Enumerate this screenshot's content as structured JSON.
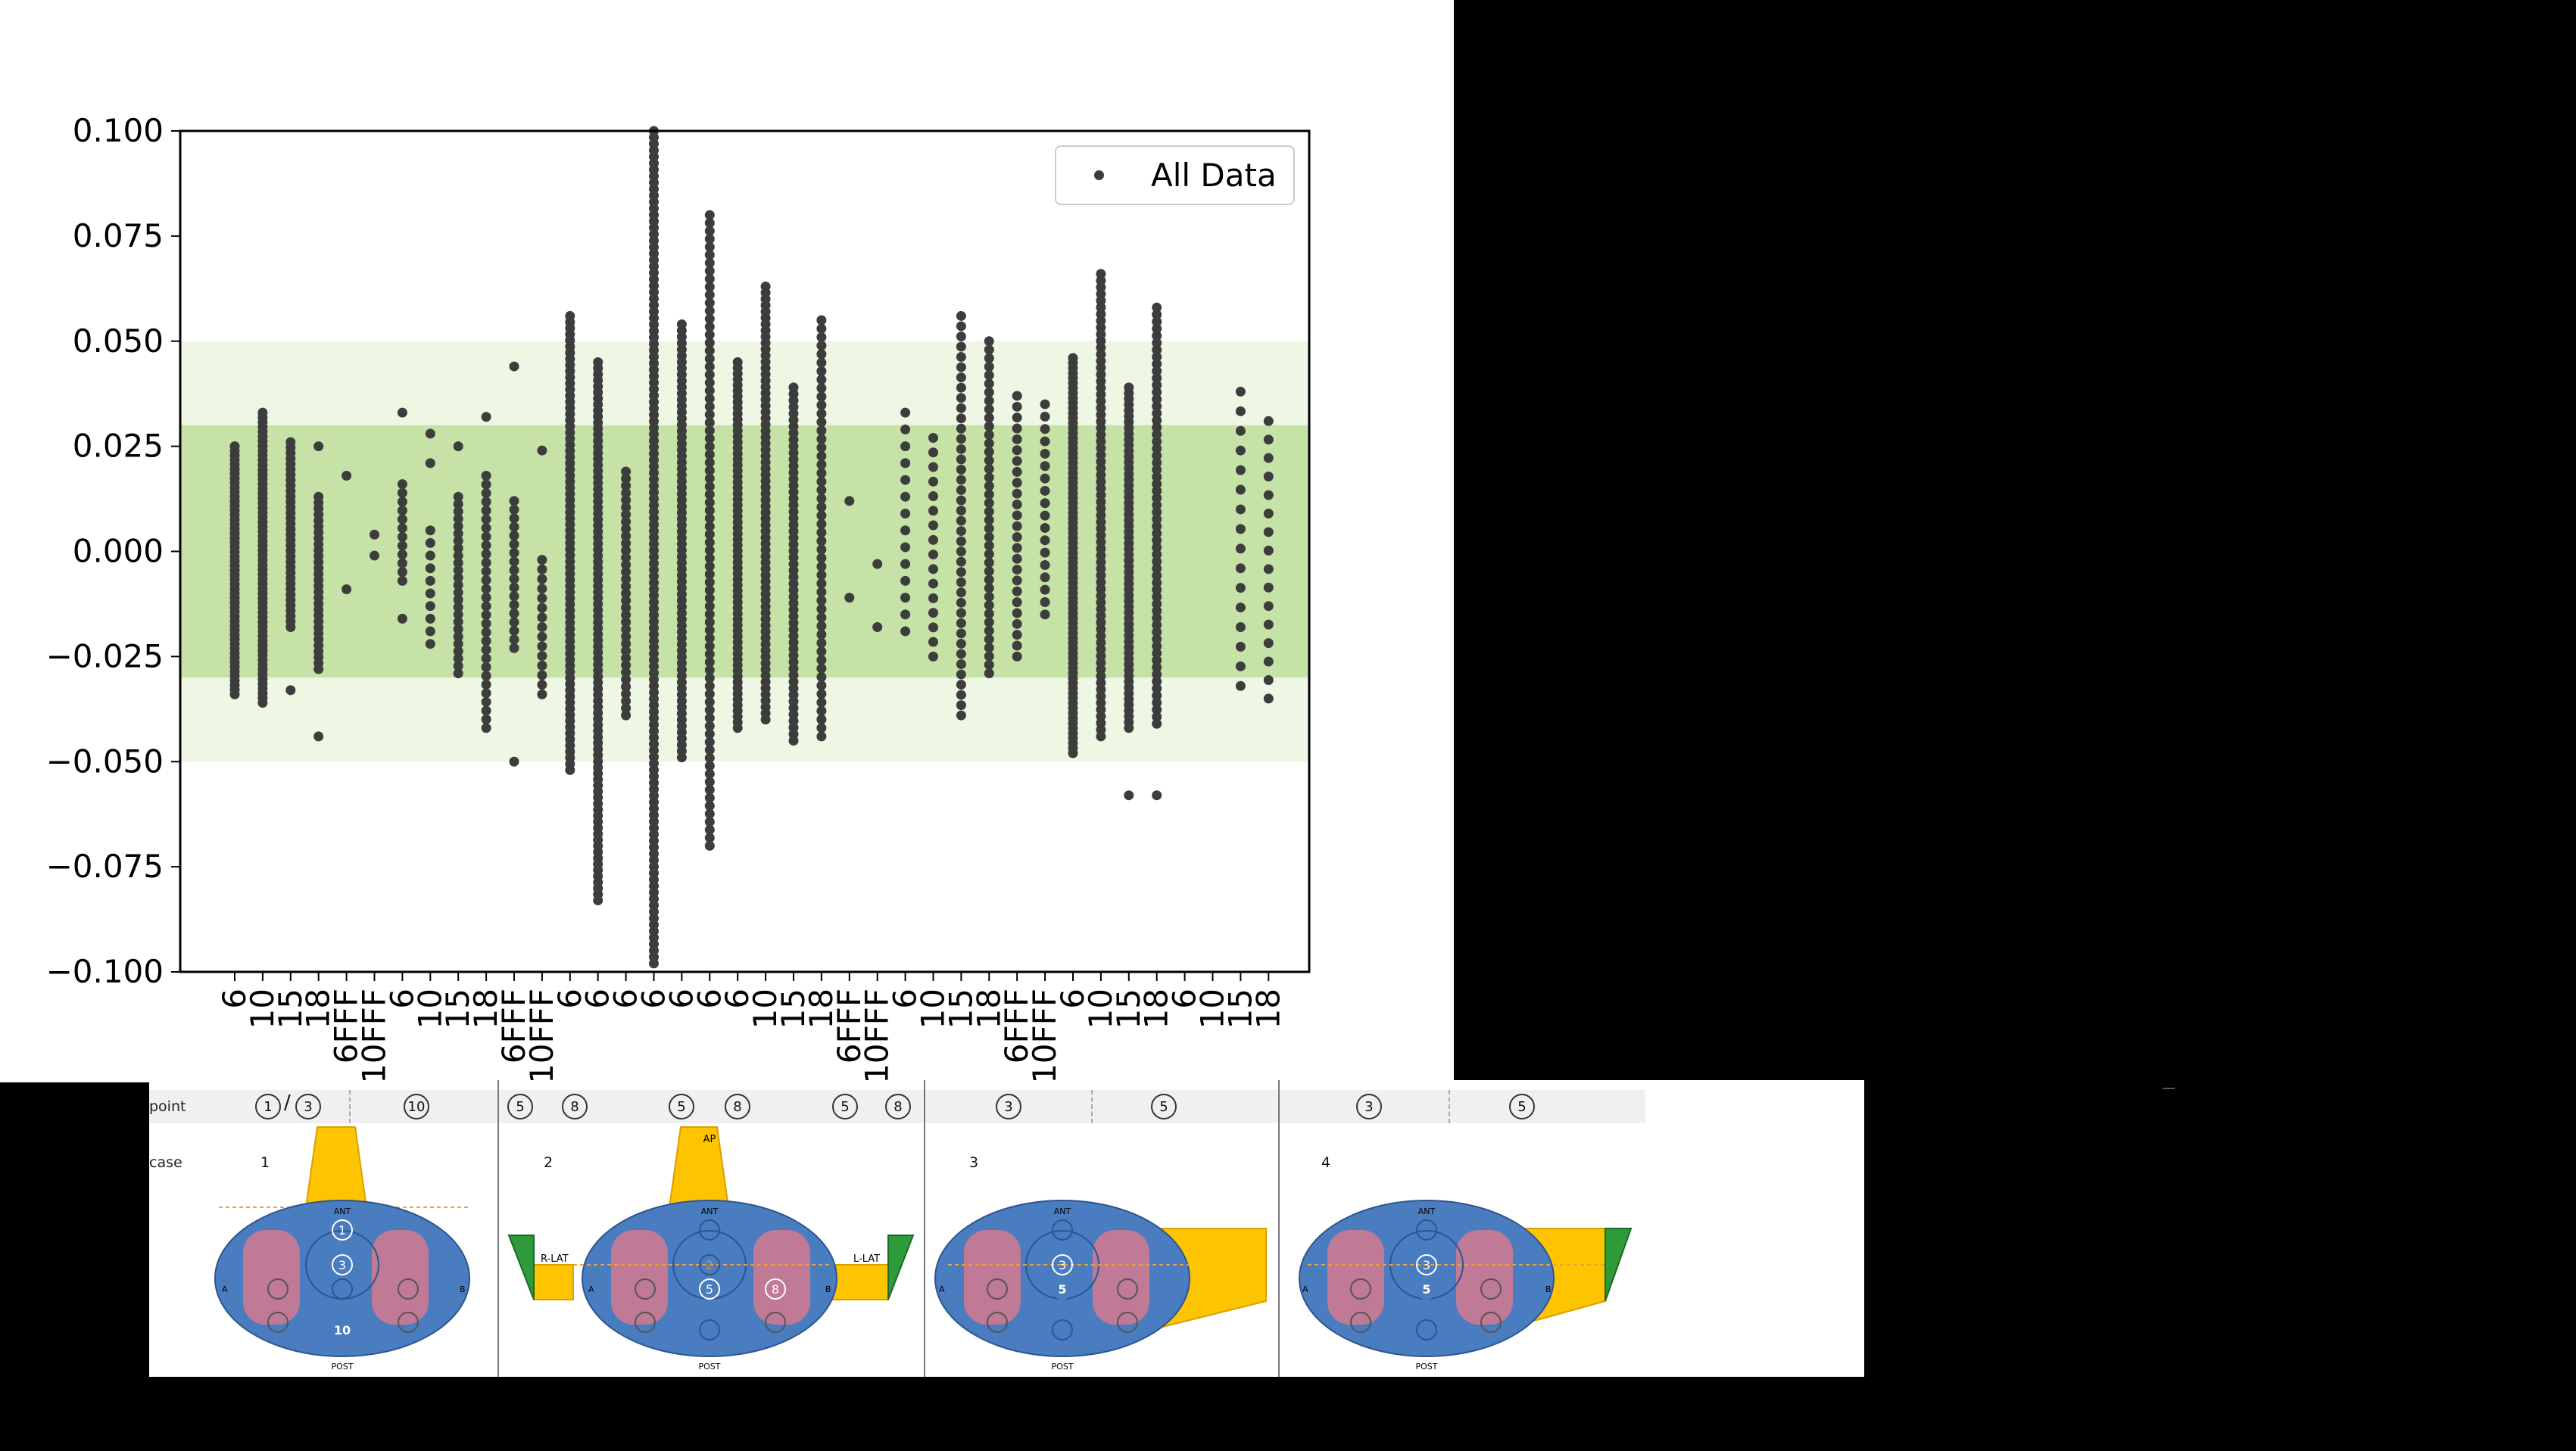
{
  "chart_data": {
    "type": "scatter",
    "title": "",
    "xlabel": "",
    "ylabel": "",
    "ylim": [
      -0.1,
      0.1
    ],
    "yticks": [
      "0.100",
      "0.075",
      "0.050",
      "0.025",
      "0.000",
      "−0.025",
      "−0.050",
      "−0.075",
      "−0.100"
    ],
    "yticks_values": [
      0.1,
      0.075,
      0.05,
      0.025,
      0.0,
      -0.025,
      -0.05,
      -0.075,
      -0.1
    ],
    "bands": [
      {
        "from": -0.05,
        "to": 0.05,
        "color": "#eef6e4"
      },
      {
        "from": -0.03,
        "to": 0.03,
        "color": "#c6e2a6"
      }
    ],
    "xticks": [
      "6",
      "10",
      "15",
      "18",
      "6FFF",
      "10FFF",
      "6",
      "10",
      "15",
      "18",
      "6FFF",
      "10FFF",
      "6",
      "6",
      "6",
      "6",
      "6",
      "6",
      "6",
      "10",
      "15",
      "18",
      "6FFF",
      "10FFF",
      "6",
      "10",
      "15",
      "18",
      "6FFF",
      "10FFF",
      "6",
      "10",
      "15",
      "18",
      "6",
      "10",
      "15",
      "18"
    ],
    "legend": {
      "label": "All Data",
      "position": "upper right"
    },
    "marker_color": "#3d3d3d",
    "series": [
      {
        "name": "All Data",
        "columns": [
          {
            "x": 1,
            "min": -0.034,
            "max": 0.025,
            "count": 55,
            "outliers": []
          },
          {
            "x": 2,
            "min": -0.036,
            "max": 0.033,
            "count": 62,
            "outliers": []
          },
          {
            "x": 3,
            "min": -0.018,
            "max": 0.026,
            "count": 35,
            "outliers": [
              -0.033
            ]
          },
          {
            "x": 4,
            "min": -0.028,
            "max": 0.013,
            "count": 30,
            "outliers": [
              0.025,
              -0.044
            ]
          },
          {
            "x": 5,
            "min": 0.018,
            "max": 0.018,
            "count": 1,
            "outliers": [
              -0.009
            ]
          },
          {
            "x": 6,
            "min": 0.004,
            "max": 0.004,
            "count": 1,
            "outliers": [
              -0.001
            ]
          },
          {
            "x": 7,
            "min": -0.007,
            "max": 0.016,
            "count": 12,
            "outliers": [
              0.033,
              -0.016
            ]
          },
          {
            "x": 8,
            "min": -0.022,
            "max": 0.005,
            "count": 10,
            "outliers": [
              0.028,
              0.021
            ]
          },
          {
            "x": 9,
            "min": -0.029,
            "max": 0.013,
            "count": 25,
            "outliers": [
              0.025
            ]
          },
          {
            "x": 10,
            "min": -0.042,
            "max": 0.018,
            "count": 30,
            "outliers": [
              0.032
            ]
          },
          {
            "x": 11,
            "min": -0.023,
            "max": 0.012,
            "count": 18,
            "outliers": [
              0.044,
              -0.05
            ]
          },
          {
            "x": 12,
            "min": -0.034,
            "max": -0.002,
            "count": 15,
            "outliers": [
              0.024
            ]
          },
          {
            "x": 13,
            "min": -0.052,
            "max": 0.056,
            "count": 75,
            "outliers": []
          },
          {
            "x": 14,
            "min": -0.083,
            "max": 0.045,
            "count": 90,
            "outliers": []
          },
          {
            "x": 15,
            "min": -0.039,
            "max": 0.019,
            "count": 35,
            "outliers": []
          },
          {
            "x": 16,
            "min": -0.098,
            "max": 0.1,
            "count": 130,
            "outliers": []
          },
          {
            "x": 17,
            "min": -0.049,
            "max": 0.054,
            "count": 70,
            "outliers": []
          },
          {
            "x": 18,
            "min": -0.07,
            "max": 0.08,
            "count": 80,
            "outliers": []
          },
          {
            "x": 19,
            "min": -0.042,
            "max": 0.045,
            "count": 65,
            "outliers": []
          },
          {
            "x": 20,
            "min": -0.04,
            "max": 0.063,
            "count": 70,
            "outliers": []
          },
          {
            "x": 21,
            "min": -0.045,
            "max": 0.039,
            "count": 55,
            "outliers": []
          },
          {
            "x": 22,
            "min": -0.044,
            "max": 0.055,
            "count": 50,
            "outliers": []
          },
          {
            "x": 23,
            "min": 0.012,
            "max": 0.012,
            "count": 1,
            "outliers": [
              -0.011
            ]
          },
          {
            "x": 24,
            "min": -0.003,
            "max": -0.003,
            "count": 1,
            "outliers": [
              -0.018
            ]
          },
          {
            "x": 25,
            "min": -0.019,
            "max": 0.033,
            "count": 14,
            "outliers": []
          },
          {
            "x": 26,
            "min": -0.025,
            "max": 0.027,
            "count": 16,
            "outliers": []
          },
          {
            "x": 27,
            "min": -0.039,
            "max": 0.056,
            "count": 40,
            "outliers": []
          },
          {
            "x": 28,
            "min": -0.029,
            "max": 0.05,
            "count": 40,
            "outliers": []
          },
          {
            "x": 29,
            "min": -0.025,
            "max": 0.037,
            "count": 25,
            "outliers": []
          },
          {
            "x": 30,
            "min": -0.015,
            "max": 0.035,
            "count": 18,
            "outliers": []
          },
          {
            "x": 31,
            "min": -0.048,
            "max": 0.046,
            "count": 80,
            "outliers": []
          },
          {
            "x": 32,
            "min": -0.044,
            "max": 0.066,
            "count": 70,
            "outliers": []
          },
          {
            "x": 33,
            "min": -0.042,
            "max": 0.039,
            "count": 60,
            "outliers": [
              -0.058
            ]
          },
          {
            "x": 34,
            "min": -0.041,
            "max": 0.058,
            "count": 60,
            "outliers": [
              -0.058
            ]
          },
          {
            "x": 37,
            "min": -0.032,
            "max": 0.038,
            "count": 16,
            "outliers": []
          },
          {
            "x": 38,
            "min": -0.035,
            "max": 0.031,
            "count": 16,
            "outliers": []
          }
        ]
      }
    ]
  },
  "diagram": {
    "row_labels": {
      "point": "point",
      "case": "case"
    },
    "cases": [
      {
        "num": "1",
        "points": [
          "1",
          "3",
          "10"
        ],
        "separator": "/",
        "circle_labels": [
          "1",
          "3",
          "10"
        ]
      },
      {
        "num": "2",
        "points": [
          "5",
          "8",
          "5",
          "8",
          "5",
          "8"
        ],
        "beam_labels": [
          "AP",
          "R-LAT",
          "L-LAT"
        ],
        "circle_labels": [
          "2",
          "5",
          "8"
        ]
      },
      {
        "num": "3",
        "points": [
          "3",
          "5"
        ],
        "circle_labels": [
          "3",
          "5"
        ]
      },
      {
        "num": "4",
        "points": [
          "3",
          "5"
        ],
        "circle_labels": [
          "3",
          "5"
        ]
      }
    ],
    "orientation": {
      "ant": "ANT",
      "post": "POST",
      "left": "A",
      "right": "B"
    },
    "colors": {
      "body": "#4a7cc0",
      "lung": "#c07a95",
      "beam": "#ffc400",
      "wedge": "#2e9a3a",
      "dashed": "#f0a030"
    }
  }
}
